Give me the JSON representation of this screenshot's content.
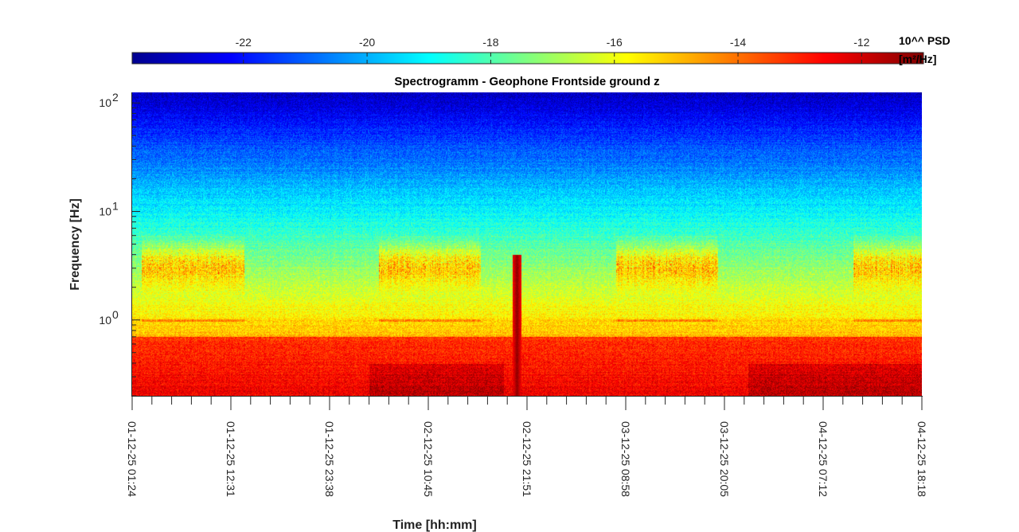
{
  "chart_data": {
    "type": "heatmap",
    "title": "Spectrogramm - Geophone Frontside ground z",
    "xlabel": "Time [hh:mm]",
    "ylabel": "Frequency [Hz]",
    "y_scale": "log",
    "ylim": [
      0.2,
      125
    ],
    "yticks": [
      {
        "value": 1,
        "label_base": "10",
        "label_exp": "0"
      },
      {
        "value": 10,
        "label_base": "10",
        "label_exp": "1"
      },
      {
        "value": 100,
        "label_base": "10",
        "label_exp": "2"
      }
    ],
    "xticks": [
      "01-12-25 01:24",
      "01-12-25 12:31",
      "01-12-25 23:38",
      "02-12-25 10:45",
      "02-12-25 21:51",
      "03-12-25 08:58",
      "03-12-25 20:05",
      "04-12-25 07:12",
      "04-12-25 18:18"
    ],
    "colorbar": {
      "label_line1": "10^^ PSD",
      "label_line2": "[m²/Hz]",
      "clim": [
        -23.8,
        -11.0
      ],
      "ticks": [
        -22,
        -20,
        -18,
        -16,
        -14,
        -12
      ],
      "tick_labels": [
        "-22",
        "-20",
        "-18",
        "-16",
        "-14",
        "-12"
      ],
      "colormap": "jet"
    },
    "features": {
      "high_freq_level": -21.5,
      "low_freq_level": -12.5,
      "day_bands_hz": [
        2,
        5
      ],
      "line_freq_hz": 1.0,
      "spike_time": "02-12-25 ~21:00",
      "spike_level": -11.2
    }
  }
}
